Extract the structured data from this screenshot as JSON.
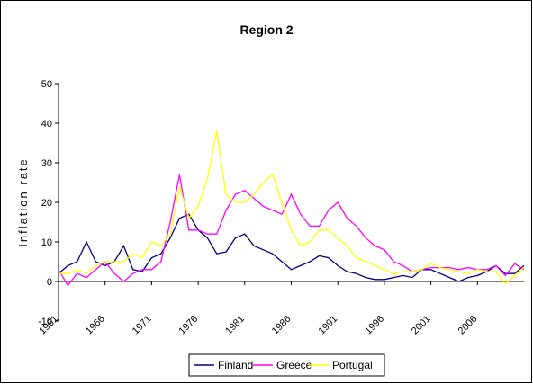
{
  "chart_data": {
    "type": "line",
    "title": "Region 2",
    "y_label": "Inflation rate",
    "x": [
      1961,
      1962,
      1963,
      1964,
      1965,
      1966,
      1967,
      1968,
      1969,
      1970,
      1971,
      1972,
      1973,
      1974,
      1975,
      1976,
      1977,
      1978,
      1979,
      1980,
      1981,
      1982,
      1983,
      1984,
      1985,
      1986,
      1987,
      1988,
      1989,
      1990,
      1991,
      1992,
      1993,
      1994,
      1995,
      1996,
      1997,
      1998,
      1999,
      2000,
      2001,
      2002,
      2003,
      2004,
      2005,
      2006,
      2007,
      2008,
      2009,
      2010,
      2011
    ],
    "series": [
      {
        "name": "Finland",
        "color": "#000080",
        "values": [
          2,
          4,
          5,
          10,
          5,
          4,
          5,
          9,
          3,
          2.5,
          6,
          7,
          11,
          16,
          17,
          13,
          11,
          7,
          7.5,
          11,
          12,
          9,
          8,
          7,
          5,
          3,
          4,
          5,
          6.5,
          6,
          4,
          2.5,
          2,
          1,
          0.5,
          0.5,
          1,
          1.5,
          1,
          3,
          3,
          2,
          1,
          0,
          1,
          1.5,
          2.5,
          4,
          2,
          2,
          4
        ]
      },
      {
        "name": "Greece",
        "color": "#ff00ff",
        "values": [
          3,
          -1,
          2,
          1,
          3,
          5,
          2,
          0,
          2,
          3,
          3,
          5,
          15,
          27,
          13,
          13,
          12,
          12,
          18,
          22,
          23,
          21,
          19,
          18,
          17,
          22,
          17,
          14,
          14,
          18,
          20,
          16,
          14,
          11,
          9,
          8,
          5,
          4,
          2.5,
          3,
          3.5,
          3.5,
          3.5,
          3,
          3.5,
          3,
          3,
          4,
          1.5,
          4.5,
          3
        ]
      },
      {
        "name": "Portugal",
        "color": "#ffff00",
        "values": [
          2,
          2,
          3,
          2,
          4,
          5,
          5,
          5,
          7,
          6,
          10,
          9,
          12,
          24,
          16,
          19,
          26,
          38,
          22,
          20,
          20,
          22,
          25,
          27,
          20,
          13,
          9,
          10,
          13,
          13,
          11,
          9,
          6,
          5,
          4,
          3,
          2,
          2.5,
          2.5,
          3,
          4.5,
          3.5,
          3,
          2.5,
          2,
          3,
          2.5,
          2.5,
          -0.5,
          1.5,
          3.5
        ]
      }
    ],
    "xlim": [
      1961,
      2011
    ],
    "xticks": [
      1961,
      1966,
      1971,
      1976,
      1981,
      1986,
      1991,
      1996,
      2001,
      2006
    ],
    "ylim": [
      -10,
      50
    ],
    "yticks": [
      -10,
      0,
      10,
      20,
      30,
      40,
      50
    ],
    "legend": "bottom"
  }
}
